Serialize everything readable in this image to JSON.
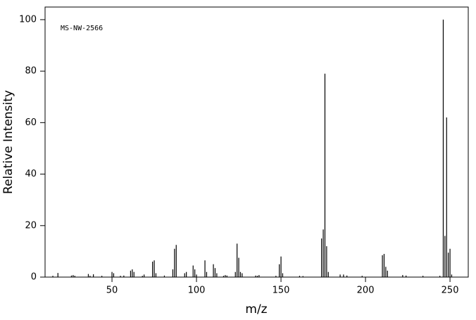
{
  "chart_data": {
    "type": "stem",
    "annotation": "MS-NW-2566",
    "xlabel": "m/z",
    "ylabel": "Relative Intensity",
    "color": "#000000",
    "x": [
      15,
      18,
      26,
      27,
      28,
      36,
      37,
      39,
      44,
      50,
      51,
      55,
      57,
      61,
      62,
      63,
      68,
      69,
      74,
      75,
      76,
      81,
      86,
      87,
      88,
      93,
      94,
      98,
      99,
      100,
      105,
      106,
      110,
      111,
      112,
      116,
      117,
      118,
      123,
      124,
      125,
      126,
      127,
      135,
      136,
      137,
      147,
      149,
      150,
      151,
      161,
      163,
      174,
      175,
      176,
      177,
      178,
      185,
      187,
      189,
      198,
      210,
      211,
      212,
      213,
      222,
      224,
      234,
      244,
      246,
      247,
      248,
      249,
      250,
      251
    ],
    "values": [
      0.5,
      1.6,
      0.6,
      0.8,
      0.5,
      1.2,
      0.5,
      1.1,
      0.5,
      2,
      1.5,
      0.5,
      0.6,
      2.5,
      3,
      2,
      0.5,
      1,
      6,
      6.5,
      1.5,
      0.6,
      3,
      11,
      12.5,
      1.5,
      2,
      4.5,
      3,
      1,
      6.5,
      2,
      5,
      3.5,
      1.5,
      0.5,
      0.8,
      0.6,
      2,
      13,
      7.5,
      2,
      1.5,
      0.6,
      0.5,
      0.8,
      0.5,
      5,
      8,
      1.5,
      0.5,
      0.4,
      15,
      18.5,
      79,
      12,
      2,
      1,
      1,
      0.6,
      0.5,
      8.5,
      9,
      4,
      2.5,
      0.8,
      0.6,
      0.5,
      0.5,
      100,
      16,
      62,
      9.5,
      11,
      1
    ],
    "xlim": [
      10.4,
      260.8
    ],
    "ylim": [
      0,
      104.9
    ],
    "xticks": [
      50,
      100,
      150,
      200,
      250
    ],
    "yticks": [
      0,
      20,
      40,
      60,
      80,
      100
    ],
    "grid": false
  }
}
